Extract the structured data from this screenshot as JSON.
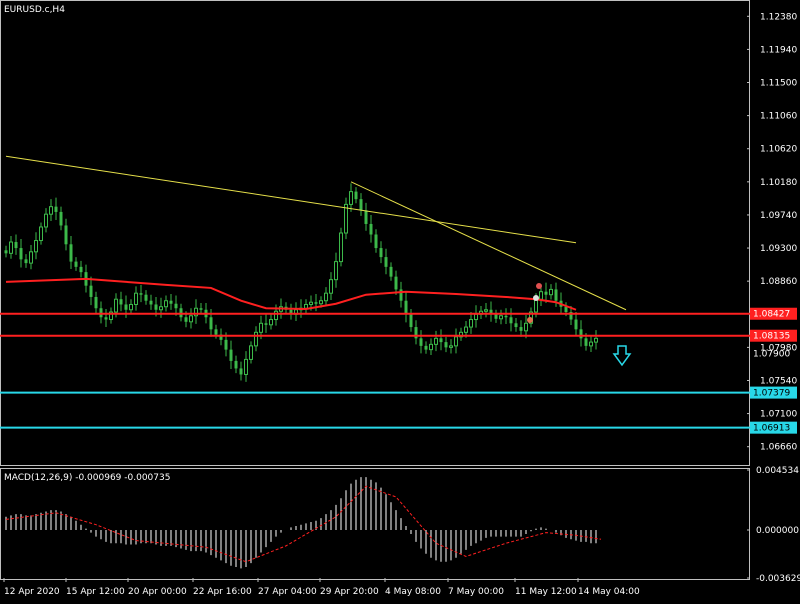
{
  "chart_title": "EURUSD.c,H4",
  "macd_title": "MACD(12,26,9) -0.000969 -0.000735",
  "colors": {
    "background": "#000000",
    "frame": "#c0c0c0",
    "bull": "#3cb94a",
    "bear": "#3cb94a",
    "ma": "#ff2020",
    "trendline": "#e6e04a",
    "resistance": "#ff2020",
    "support": "#28d8e8",
    "axis_text": "#ffffff",
    "macd_hist": "#ffffff",
    "macd_signal": "#ff2020",
    "arrow": "#28d8e8"
  },
  "chart_data": [
    {
      "type": "candlestick",
      "symbol": "EURUSD.c",
      "timeframe": "H4",
      "ylim": [
        1.0643,
        1.1257
      ],
      "y_ticks": [
        "1.12380",
        "1.11940",
        "1.11500",
        "1.11060",
        "1.10620",
        "1.10180",
        "1.09740",
        "1.09300",
        "1.08860",
        "1.07980",
        "1.07540",
        "1.07100",
        "1.06660"
      ],
      "x_ticks": [
        "12 Apr 2020",
        "15 Apr 12:00",
        "20 Apr 00:00",
        "22 Apr 16:00",
        "27 Apr 04:00",
        "29 Apr 20:00",
        "4 May 08:00",
        "7 May 00:00",
        "11 May 12:00",
        "14 May 04:00"
      ],
      "closes": [
        1.0923,
        1.0938,
        1.093,
        1.0915,
        1.091,
        1.0925,
        1.094,
        1.0958,
        1.0975,
        1.0985,
        1.0978,
        1.096,
        1.0935,
        1.0912,
        1.0905,
        1.0898,
        1.088,
        1.0865,
        1.085,
        1.0838,
        1.0835,
        1.0845,
        1.0862,
        1.0855,
        1.0848,
        1.0855,
        1.087,
        1.0868,
        1.086,
        1.0855,
        1.0848,
        1.0852,
        1.086,
        1.0856,
        1.085,
        1.0838,
        1.0832,
        1.084,
        1.085,
        1.0848,
        1.0838,
        1.0822,
        1.0815,
        1.0808,
        1.0795,
        1.078,
        1.077,
        1.0762,
        1.0782,
        1.08,
        1.0818,
        1.083,
        1.0828,
        1.0835,
        1.0846,
        1.0852,
        1.0848,
        1.0842,
        1.0848,
        1.085,
        1.0855,
        1.0858,
        1.0856,
        1.086,
        1.087,
        1.0888,
        1.0912,
        1.095,
        1.0988,
        1.1005,
        1.0995,
        1.098,
        1.0962,
        1.0948,
        1.093,
        1.0918,
        1.0905,
        1.0892,
        1.0875,
        1.086,
        1.0842,
        1.0825,
        1.081,
        1.08,
        1.0795,
        1.0802,
        1.081,
        1.0805,
        1.0798,
        1.08,
        1.0812,
        1.0818,
        1.0825,
        1.0835,
        1.0842,
        1.0846,
        1.0848,
        1.0842,
        1.0836,
        1.084,
        1.0838,
        1.083,
        1.0825,
        1.082,
        1.083,
        1.0845,
        1.0862,
        1.0872,
        1.0868,
        1.0875,
        1.086,
        1.0852,
        1.0845,
        1.0835,
        1.0822,
        1.081,
        1.08,
        1.0805,
        1.081
      ],
      "moving_average": [
        {
          "i": 0,
          "v": 1.0885
        },
        {
          "i": 16,
          "v": 1.0889
        },
        {
          "i": 32,
          "v": 1.0881
        },
        {
          "i": 41,
          "v": 1.0877
        },
        {
          "i": 47,
          "v": 1.086
        },
        {
          "i": 52,
          "v": 1.085
        },
        {
          "i": 60,
          "v": 1.0849
        },
        {
          "i": 66,
          "v": 1.0856
        },
        {
          "i": 72,
          "v": 1.0868
        },
        {
          "i": 80,
          "v": 1.0872
        },
        {
          "i": 90,
          "v": 1.0869
        },
        {
          "i": 100,
          "v": 1.0865
        },
        {
          "i": 106,
          "v": 1.0862
        },
        {
          "i": 110,
          "v": 1.0858
        },
        {
          "i": 114,
          "v": 1.0848
        }
      ],
      "trendlines": [
        {
          "from": {
            "i": 0,
            "v": 1.1052
          },
          "to": {
            "i": 114,
            "v": 1.0937
          }
        },
        {
          "from": {
            "i": 69,
            "v": 1.1018
          },
          "to": {
            "i": 124,
            "v": 1.0848
          }
        }
      ],
      "resistance_levels": [
        "1.08427",
        "1.08135"
      ],
      "support_levels": [
        "1.07379",
        "1.06913"
      ],
      "signal_arrow": "down-arrow",
      "price_label_visible": "1.07900"
    },
    {
      "type": "macd",
      "params": "MACD(12,26,9)",
      "ylim": [
        -0.003629,
        0.004534
      ],
      "y_ticks": [
        "0.004534",
        "0.000000",
        "-0.003629"
      ],
      "histogram": [
        0.001,
        0.0011,
        0.0012,
        0.0012,
        0.0011,
        0.0011,
        0.0012,
        0.0013,
        0.0014,
        0.0015,
        0.0015,
        0.0014,
        0.0012,
        0.001,
        0.0007,
        0.0004,
        0.0001,
        -0.0002,
        -0.0005,
        -0.0007,
        -0.0009,
        -0.001,
        -0.001,
        -0.001,
        -0.0011,
        -0.0011,
        -0.0011,
        -0.001,
        -0.001,
        -0.001,
        -0.0011,
        -0.0012,
        -0.0012,
        -0.0012,
        -0.0013,
        -0.0014,
        -0.0015,
        -0.0016,
        -0.0016,
        -0.0016,
        -0.0017,
        -0.0019,
        -0.0021,
        -0.0023,
        -0.0025,
        -0.0027,
        -0.0028,
        -0.0029,
        -0.0028,
        -0.0025,
        -0.0021,
        -0.0017,
        -0.0013,
        -0.0009,
        -0.0005,
        -0.0002,
        0.0,
        0.0002,
        0.0003,
        0.0004,
        0.0005,
        0.0006,
        0.0007,
        0.0009,
        0.0012,
        0.0015,
        0.0019,
        0.0024,
        0.003,
        0.0035,
        0.0038,
        0.004,
        0.004,
        0.0038,
        0.0036,
        0.0032,
        0.0027,
        0.0021,
        0.0015,
        0.0009,
        0.0003,
        -0.0003,
        -0.0009,
        -0.0014,
        -0.0018,
        -0.0021,
        -0.0023,
        -0.0024,
        -0.0024,
        -0.0023,
        -0.0021,
        -0.0018,
        -0.0015,
        -0.0012,
        -0.001,
        -0.0008,
        -0.0006,
        -0.0005,
        -0.0005,
        -0.0005,
        -0.0005,
        -0.0005,
        -0.0005,
        -0.0005,
        -0.0003,
        -0.0001,
        0.0001,
        0.0002,
        0.0001,
        0.0,
        -0.0002,
        -0.0004,
        -0.0006,
        -0.0007,
        -0.0008,
        -0.0009,
        -0.0009,
        -0.001,
        -0.001
      ],
      "signal": [
        {
          "i": 0,
          "v": 0.0008
        },
        {
          "i": 10,
          "v": 0.0013
        },
        {
          "i": 18,
          "v": 0.0004
        },
        {
          "i": 26,
          "v": -0.0008
        },
        {
          "i": 40,
          "v": -0.0013
        },
        {
          "i": 48,
          "v": -0.0024
        },
        {
          "i": 56,
          "v": -0.0012
        },
        {
          "i": 66,
          "v": 0.001
        },
        {
          "i": 72,
          "v": 0.0033
        },
        {
          "i": 78,
          "v": 0.0025
        },
        {
          "i": 86,
          "v": -0.001
        },
        {
          "i": 92,
          "v": -0.002
        },
        {
          "i": 100,
          "v": -0.001
        },
        {
          "i": 108,
          "v": -0.0002
        },
        {
          "i": 114,
          "v": -0.0004
        },
        {
          "i": 119,
          "v": -0.0007
        }
      ]
    }
  ]
}
